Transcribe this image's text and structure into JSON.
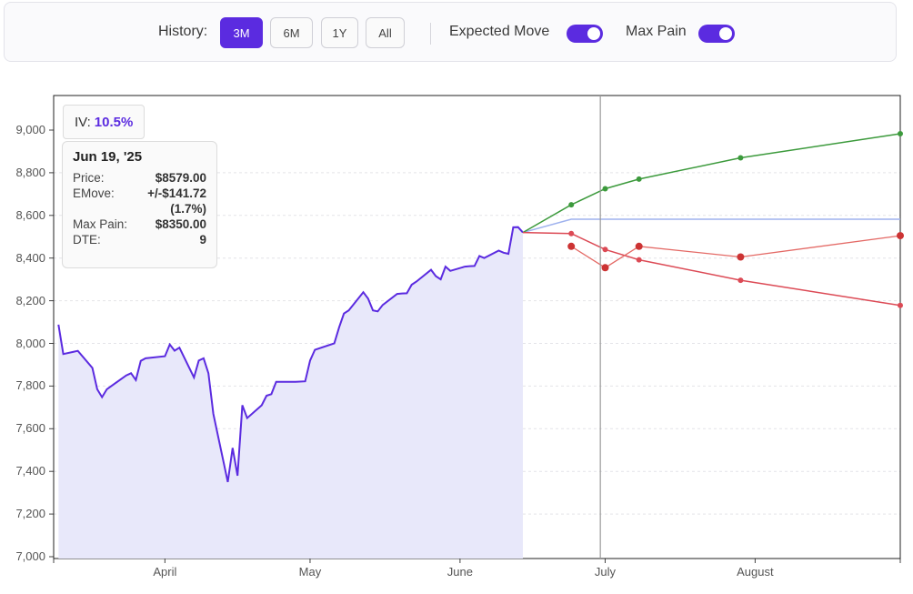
{
  "toolbar": {
    "history_label": "History:",
    "history_buttons": [
      "3M",
      "6M",
      "1Y",
      "All"
    ],
    "active_history": "3M",
    "expected_move_label": "Expected Move",
    "expected_move_on": true,
    "max_pain_label": "Max Pain",
    "max_pain_on": true,
    "accent_color": "#5b2be0"
  },
  "iv": {
    "label": "IV:",
    "value": "10.5%"
  },
  "tooltip": {
    "date": "Jun 19, '25",
    "price_label": "Price:",
    "price": "$8579.00",
    "emove_label": "EMove:",
    "emove": "+/-$141.72",
    "emove_pct": "(1.7%)",
    "maxpain_label": "Max Pain:",
    "maxpain": "$8350.00",
    "dte_label": "DTE:",
    "dte": "9"
  },
  "chart_data": {
    "type": "line",
    "y_ticks": [
      "9,000",
      "8,800",
      "8,600",
      "8,400",
      "8,200",
      "8,000",
      "7,800",
      "7,600",
      "7,400",
      "7,200",
      "7,000"
    ],
    "x_ticks": [
      "April",
      "May",
      "June",
      "July",
      "August"
    ],
    "ylim": [
      7000,
      9200
    ],
    "price_series": {
      "name": "Price",
      "color": "#5b2be0",
      "fill": "#e8e8fa",
      "points": [
        [
          "2025-03-10",
          8088
        ],
        [
          "2025-03-11",
          7950
        ],
        [
          "2025-03-13",
          7960
        ],
        [
          "2025-03-14",
          7965
        ],
        [
          "2025-03-17",
          7885
        ],
        [
          "2025-03-18",
          7785
        ],
        [
          "2025-03-19",
          7748
        ],
        [
          "2025-03-20",
          7785
        ],
        [
          "2025-03-24",
          7850
        ],
        [
          "2025-03-25",
          7860
        ],
        [
          "2025-03-26",
          7828
        ],
        [
          "2025-03-27",
          7918
        ],
        [
          "2025-03-28",
          7930
        ],
        [
          "2025-04-01",
          7940
        ],
        [
          "2025-04-02",
          7995
        ],
        [
          "2025-04-03",
          7966
        ],
        [
          "2025-04-04",
          7980
        ],
        [
          "2025-04-07",
          7840
        ],
        [
          "2025-04-08",
          7920
        ],
        [
          "2025-04-09",
          7930
        ],
        [
          "2025-04-10",
          7860
        ],
        [
          "2025-04-11",
          7670
        ],
        [
          "2025-04-14",
          7350
        ],
        [
          "2025-04-15",
          7510
        ],
        [
          "2025-04-16",
          7380
        ],
        [
          "2025-04-17",
          7710
        ],
        [
          "2025-04-18",
          7650
        ],
        [
          "2025-04-21",
          7710
        ],
        [
          "2025-04-22",
          7755
        ],
        [
          "2025-04-23",
          7762
        ],
        [
          "2025-04-24",
          7820
        ],
        [
          "2025-04-25",
          7820
        ],
        [
          "2025-04-28",
          7820
        ],
        [
          "2025-04-30",
          7822
        ],
        [
          "2025-05-01",
          7920
        ],
        [
          "2025-05-02",
          7970
        ],
        [
          "2025-05-06",
          8000
        ],
        [
          "2025-05-07",
          8075
        ],
        [
          "2025-05-08",
          8140
        ],
        [
          "2025-05-09",
          8155
        ],
        [
          "2025-05-12",
          8240
        ],
        [
          "2025-05-13",
          8210
        ],
        [
          "2025-05-14",
          8155
        ],
        [
          "2025-05-15",
          8150
        ],
        [
          "2025-05-16",
          8180
        ],
        [
          "2025-05-19",
          8232
        ],
        [
          "2025-05-20",
          8234
        ],
        [
          "2025-05-21",
          8235
        ],
        [
          "2025-05-22",
          8275
        ],
        [
          "2025-05-23",
          8290
        ],
        [
          "2025-05-26",
          8345
        ],
        [
          "2025-05-27",
          8315
        ],
        [
          "2025-05-28",
          8300
        ],
        [
          "2025-05-29",
          8360
        ],
        [
          "2025-05-30",
          8340
        ],
        [
          "2025-06-02",
          8360
        ],
        [
          "2025-06-03",
          8362
        ],
        [
          "2025-06-04",
          8363
        ],
        [
          "2025-06-05",
          8410
        ],
        [
          "2025-06-06",
          8400
        ],
        [
          "2025-06-09",
          8435
        ],
        [
          "2025-06-10",
          8425
        ],
        [
          "2025-06-11",
          8420
        ],
        [
          "2025-06-12",
          8544
        ],
        [
          "2025-06-13",
          8545
        ],
        [
          "2025-06-14",
          8520
        ]
      ]
    },
    "expected_up": {
      "name": "Expected Move Upper",
      "color": "#3c9a3c",
      "points": [
        [
          "2025-06-14",
          8520
        ],
        [
          "2025-06-24",
          8650
        ],
        [
          "2025-07-01",
          8725
        ],
        [
          "2025-07-08",
          8770
        ],
        [
          "2025-07-29",
          8870
        ],
        [
          "2025-08-31",
          8983
        ]
      ]
    },
    "expected_down": {
      "name": "Expected Move Lower",
      "color": "#dc4a55",
      "points": [
        [
          "2025-06-14",
          8520
        ],
        [
          "2025-06-24",
          8515
        ],
        [
          "2025-07-01",
          8440
        ],
        [
          "2025-07-08",
          8392
        ],
        [
          "2025-07-29",
          8296
        ],
        [
          "2025-08-31",
          8178
        ]
      ]
    },
    "max_pain": {
      "name": "Max Pain",
      "color": "#e46a66",
      "points": [
        [
          "2025-06-24",
          8455
        ],
        [
          "2025-07-01",
          8355
        ],
        [
          "2025-07-08",
          8455
        ],
        [
          "2025-07-29",
          8405
        ],
        [
          "2025-08-31",
          8505
        ]
      ]
    },
    "reference_line": {
      "color": "#9fb2ee",
      "points": [
        [
          "2025-06-14",
          8520
        ],
        [
          "2025-06-24",
          8582
        ],
        [
          "2025-08-31",
          8582
        ]
      ]
    },
    "crosshair_date": "2025-06-30",
    "grid": true
  }
}
